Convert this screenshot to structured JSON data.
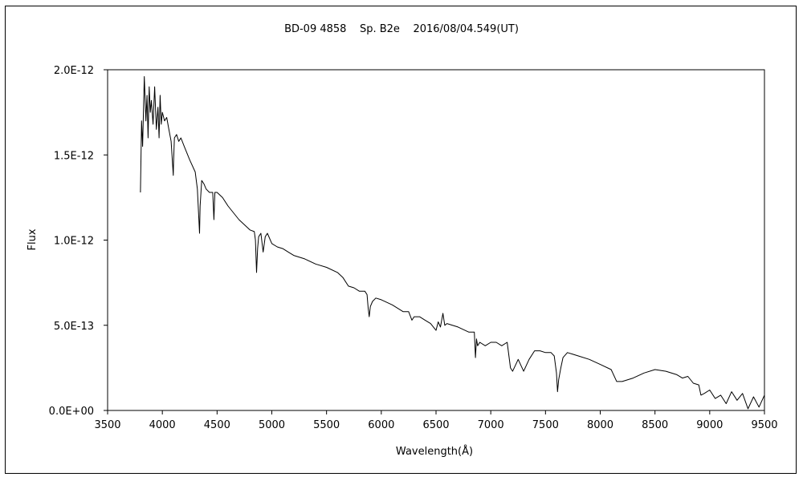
{
  "chart_data": {
    "type": "line",
    "title": "BD-09 4858    Sp. B2e    2016/08/04.549(UT)",
    "xlabel": "Wavelength(Å)",
    "ylabel": "Flux",
    "xlim": [
      3500,
      9500
    ],
    "ylim": [
      0,
      2e-12
    ],
    "x_ticks": [
      3500,
      4000,
      4500,
      5000,
      5500,
      6000,
      6500,
      7000,
      7500,
      8000,
      8500,
      9000,
      9500
    ],
    "x_tick_labels": [
      "3500",
      "4000",
      "4500",
      "5000",
      "5500",
      "6000",
      "6500",
      "7000",
      "7500",
      "8000",
      "8500",
      "9000",
      "9500"
    ],
    "y_ticks": [
      0,
      5e-13,
      1e-12,
      1.5e-12,
      2e-12
    ],
    "y_tick_labels": [
      "0.0E+00",
      "5.0E-13",
      "1.0E-12",
      "1.5E-12",
      "2.0E-12"
    ],
    "grid": false,
    "line_color": "#000000",
    "series": [
      {
        "x": [
          3800,
          3810,
          3820,
          3835,
          3850,
          3860,
          3870,
          3880,
          3890,
          3900,
          3915,
          3930,
          3945,
          3960,
          3970,
          3980,
          3990,
          4000,
          4020,
          4040,
          4060,
          4080,
          4100,
          4102,
          4110,
          4130,
          4150,
          4170,
          4200,
          4250,
          4300,
          4320,
          4340,
          4345,
          4360,
          4380,
          4400,
          4430,
          4460,
          4471,
          4480,
          4500,
          4550,
          4600,
          4650,
          4700,
          4750,
          4800,
          4840,
          4850,
          4861,
          4870,
          4880,
          4900,
          4921,
          4940,
          4960,
          5000,
          5050,
          5100,
          5150,
          5200,
          5300,
          5400,
          5500,
          5600,
          5650,
          5700,
          5750,
          5800,
          5850,
          5870,
          5880,
          5890,
          5900,
          5920,
          5950,
          6000,
          6100,
          6200,
          6250,
          6280,
          6300,
          6350,
          6400,
          6450,
          6500,
          6520,
          6540,
          6563,
          6580,
          6600,
          6700,
          6800,
          6850,
          6860,
          6870,
          6880,
          6900,
          6950,
          7000,
          7050,
          7100,
          7150,
          7180,
          7200,
          7250,
          7300,
          7350,
          7400,
          7450,
          7500,
          7550,
          7580,
          7600,
          7610,
          7620,
          7640,
          7660,
          7700,
          7750,
          7800,
          7900,
          8000,
          8100,
          8150,
          8200,
          8300,
          8400,
          8500,
          8600,
          8700,
          8750,
          8800,
          8850,
          8900,
          8920,
          8950,
          9000,
          9050,
          9100,
          9150,
          9200,
          9250,
          9300,
          9350,
          9400,
          9450,
          9500
        ],
        "y": [
          1.28e-12,
          1.7e-12,
          1.55e-12,
          1.96e-12,
          1.7e-12,
          1.85e-12,
          1.6e-12,
          1.9e-12,
          1.75e-12,
          1.82e-12,
          1.68e-12,
          1.9e-12,
          1.65e-12,
          1.78e-12,
          1.6e-12,
          1.85e-12,
          1.68e-12,
          1.75e-12,
          1.7e-12,
          1.72e-12,
          1.65e-12,
          1.58e-12,
          1.38e-12,
          1.45e-12,
          1.6e-12,
          1.62e-12,
          1.58e-12,
          1.6e-12,
          1.55e-12,
          1.47e-12,
          1.4e-12,
          1.3e-12,
          1.04e-12,
          1.2e-12,
          1.35e-12,
          1.33e-12,
          1.3e-12,
          1.28e-12,
          1.28e-12,
          1.12e-12,
          1.28e-12,
          1.28e-12,
          1.25e-12,
          1.2e-12,
          1.16e-12,
          1.12e-12,
          1.09e-12,
          1.06e-12,
          1.05e-12,
          1e-12,
          8.1e-13,
          9.5e-13,
          1.02e-12,
          1.04e-12,
          9.3e-13,
          1.02e-12,
          1.04e-12,
          9.8e-13,
          9.6e-13,
          9.5e-13,
          9.3e-13,
          9.1e-13,
          8.9e-13,
          8.6e-13,
          8.4e-13,
          8.1e-13,
          7.8e-13,
          7.3e-13,
          7.2e-13,
          7e-13,
          7e-13,
          6.8e-13,
          6e-13,
          5.5e-13,
          6.1e-13,
          6.4e-13,
          6.6e-13,
          6.5e-13,
          6.2e-13,
          5.8e-13,
          5.8e-13,
          5.3e-13,
          5.5e-13,
          5.5e-13,
          5.3e-13,
          5.1e-13,
          4.7e-13,
          5.2e-13,
          4.9e-13,
          5.7e-13,
          5e-13,
          5.1e-13,
          4.9e-13,
          4.6e-13,
          4.6e-13,
          3.1e-13,
          4.2e-13,
          3.8e-13,
          4e-13,
          3.8e-13,
          4e-13,
          4e-13,
          3.8e-13,
          4e-13,
          2.5e-13,
          2.3e-13,
          3e-13,
          2.3e-13,
          3e-13,
          3.5e-13,
          3.5e-13,
          3.4e-13,
          3.4e-13,
          3.2e-13,
          2.2e-13,
          1.1e-13,
          1.8e-13,
          2.5e-13,
          3.1e-13,
          3.4e-13,
          3.3e-13,
          3.2e-13,
          3e-13,
          2.7e-13,
          2.4e-13,
          1.7e-13,
          1.7e-13,
          1.9e-13,
          2.2e-13,
          2.4e-13,
          2.3e-13,
          2.1e-13,
          1.9e-13,
          2e-13,
          1.6e-13,
          1.5e-13,
          9e-14,
          1e-13,
          1.2e-13,
          7e-14,
          9e-14,
          4e-14,
          1.1e-13,
          6e-14,
          1e-13,
          1e-14,
          8e-14,
          2e-14,
          9e-14
        ]
      }
    ]
  }
}
